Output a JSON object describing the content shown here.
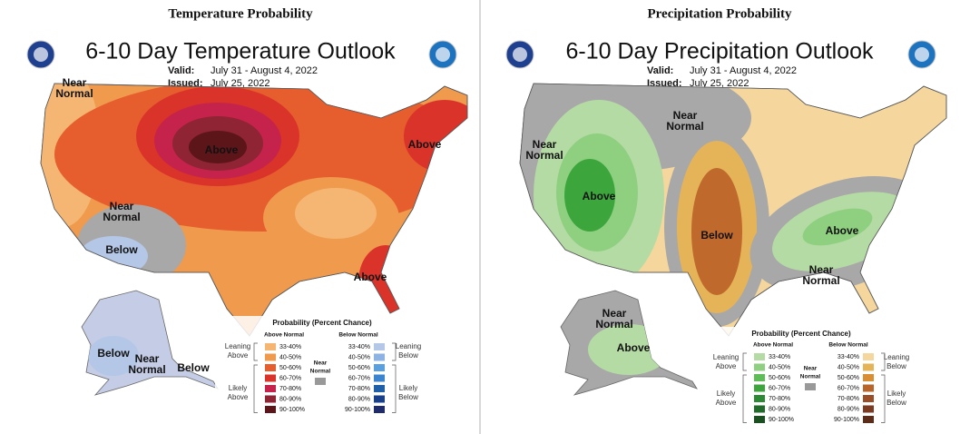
{
  "panels": [
    {
      "header": "Temperature Probability",
      "title": "6-10 Day Temperature Outlook",
      "valid_label": "Valid:",
      "valid": "July 31 - August 4, 2022",
      "issued_label": "Issued:",
      "issued": "July 25, 2022",
      "regions": [
        [
          "Near",
          "Normal"
        ],
        [
          "Above"
        ],
        [
          "Above"
        ],
        [
          "Near",
          "Normal"
        ],
        [
          "Below"
        ],
        [
          "Above"
        ],
        [
          "Below"
        ],
        [
          "Near",
          "Normal"
        ],
        [
          "Below"
        ]
      ],
      "legend": {
        "title": "Probability (Percent Chance)",
        "above_heading": "Above Normal",
        "below_heading": "Below Normal",
        "near": [
          "Near",
          "Normal"
        ],
        "leaning_above": [
          "Leaning",
          "Above"
        ],
        "likely_above": [
          "Likely",
          "Above"
        ],
        "leaning_below": [
          "Leaning",
          "Below"
        ],
        "likely_below": [
          "Likely",
          "Below"
        ],
        "above_bins": [
          "33-40%",
          "40-50%",
          "50-60%",
          "60-70%",
          "70-80%",
          "80-90%",
          "90-100%"
        ],
        "below_bins": [
          "33-40%",
          "40-50%",
          "50-60%",
          "60-70%",
          "70-80%",
          "80-90%",
          "90-100%"
        ],
        "above_colors": [
          "#f5b673",
          "#f09a4e",
          "#e65d2e",
          "#d9332a",
          "#c5234b",
          "#8e2434",
          "#5c1519"
        ],
        "below_colors": [
          "#b4c7e7",
          "#8cb3e3",
          "#5aa0de",
          "#3b84d0",
          "#1f5fa8",
          "#173f8a",
          "#1e2c6e"
        ],
        "near_color": "#999999"
      }
    },
    {
      "header": "Precipitation Probability",
      "title": "6-10 Day Precipitation Outlook",
      "valid_label": "Valid:",
      "valid": "July 31 - August 4, 2022",
      "issued_label": "Issued:",
      "issued": "July 25, 2022",
      "regions": [
        [
          "Near",
          "Normal"
        ],
        [
          "Near",
          "Normal"
        ],
        [
          "Above"
        ],
        [
          "Below"
        ],
        [
          "Above"
        ],
        [
          "Near",
          "Normal"
        ],
        [
          "Near",
          "Normal"
        ],
        [
          "Above"
        ]
      ],
      "legend": {
        "title": "Probability (Percent Chance)",
        "above_heading": "Above Normal",
        "below_heading": "Below Normal",
        "near": [
          "Near",
          "Normal"
        ],
        "leaning_above": [
          "Leaning",
          "Above"
        ],
        "likely_above": [
          "Likely",
          "Above"
        ],
        "leaning_below": [
          "Leaning",
          "Below"
        ],
        "likely_below": [
          "Likely",
          "Below"
        ],
        "above_bins": [
          "33-40%",
          "40-50%",
          "50-60%",
          "60-70%",
          "70-80%",
          "80-90%",
          "90-100%"
        ],
        "below_bins": [
          "33-40%",
          "40-50%",
          "50-60%",
          "60-70%",
          "70-80%",
          "80-90%",
          "90-100%"
        ],
        "above_colors": [
          "#b5dba5",
          "#8fcf80",
          "#5ebd56",
          "#3ca63d",
          "#2c8a34",
          "#216b2a",
          "#1a4f20"
        ],
        "below_colors": [
          "#f5d79e",
          "#e6b458",
          "#d98e33",
          "#b9652a",
          "#9a4d26",
          "#7c3b20",
          "#5c2c18"
        ],
        "near_color": "#999999"
      }
    }
  ]
}
